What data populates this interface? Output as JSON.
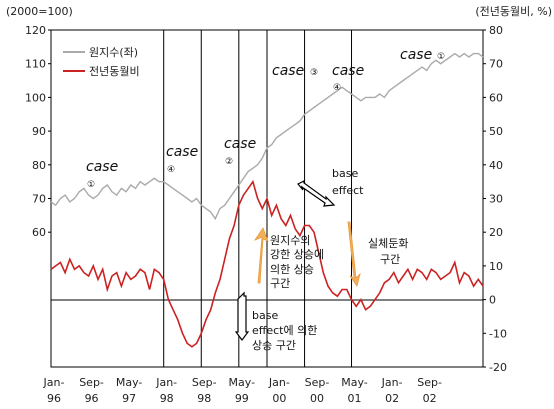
{
  "chart_data": {
    "type": "line",
    "left_axis": {
      "unit_label": "(2000=100)",
      "ticks": [
        60,
        70,
        80,
        90,
        100,
        110,
        120
      ],
      "range": [
        20,
        120
      ]
    },
    "right_axis": {
      "unit_label": "(전년동월비, %)",
      "ticks": [
        -20,
        -10,
        0,
        10,
        20,
        30,
        40,
        50,
        60,
        70,
        80
      ],
      "range": [
        -20,
        80
      ]
    },
    "x_ticks": [
      {
        "top": "Jan-",
        "bottom": "96"
      },
      {
        "top": "Sep-",
        "bottom": "96"
      },
      {
        "top": "May-",
        "bottom": "97"
      },
      {
        "top": "Jan-",
        "bottom": "98"
      },
      {
        "top": "Sep-",
        "bottom": "98"
      },
      {
        "top": "May-",
        "bottom": "99"
      },
      {
        "top": "Jan-",
        "bottom": "00"
      },
      {
        "top": "Sep-",
        "bottom": "00"
      },
      {
        "top": "May-",
        "bottom": "01"
      },
      {
        "top": "Jan-",
        "bottom": "02"
      },
      {
        "top": "Sep-",
        "bottom": "02"
      }
    ],
    "legend": [
      {
        "name": "원지수(좌)",
        "color": "#aaaaaa"
      },
      {
        "name": "전년동월비",
        "color": "#cc2222"
      }
    ],
    "case_markers": [
      {
        "label": "case",
        "num": "①"
      },
      {
        "label": "case",
        "num": "④"
      },
      {
        "label": "case",
        "num": "②"
      },
      {
        "label": "case",
        "num": "③"
      },
      {
        "label": "case",
        "num": "④"
      },
      {
        "label": "case",
        "num": "①"
      }
    ],
    "vertical_lines_month": [
      24,
      32,
      40,
      46,
      54,
      64
    ],
    "annotations": {
      "base_effect_top": [
        "base",
        "effect"
      ],
      "rise_label": [
        "원지수의",
        "강한 상승에",
        "의한 상승",
        "구간"
      ],
      "decline_label": [
        "실체둔화",
        "구간"
      ],
      "base_effect_bottom": [
        "base",
        "effect에 의한",
        "상승 구간"
      ]
    },
    "series": [
      {
        "name": "원지수(좌)",
        "axis": "left",
        "color": "#aaaaaa",
        "values": [
          69,
          68,
          70,
          71,
          69,
          70,
          72,
          73,
          71,
          70,
          71,
          73,
          74,
          72,
          71,
          73,
          72,
          74,
          73,
          75,
          74,
          75,
          76,
          75,
          75,
          74,
          73,
          72,
          71,
          70,
          69,
          70,
          68,
          67,
          66,
          64,
          67,
          68,
          70,
          72,
          74,
          76,
          78,
          79,
          80,
          82,
          85,
          86,
          88,
          89,
          90,
          91,
          92,
          93,
          95,
          96,
          97,
          98,
          99,
          100,
          101,
          102,
          103,
          102,
          101,
          100,
          99,
          100,
          100,
          100,
          101,
          100,
          102,
          103,
          104,
          105,
          106,
          107,
          108,
          109,
          108,
          110,
          111,
          110,
          111,
          112,
          113,
          112,
          113,
          112,
          113,
          113,
          112
        ]
      },
      {
        "name": "전년동월비",
        "axis": "right",
        "color": "#cc2222",
        "values": [
          9,
          10,
          11,
          8,
          12,
          9,
          10,
          8,
          7,
          10,
          6,
          9,
          3,
          7,
          8,
          4,
          8,
          6,
          7,
          9,
          8,
          3,
          9,
          8,
          6,
          0,
          -3,
          -6,
          -10,
          -13,
          -14,
          -13,
          -10,
          -6,
          -3,
          2,
          6,
          12,
          18,
          22,
          28,
          31,
          33,
          35,
          30,
          27,
          30,
          25,
          28,
          24,
          22,
          25,
          21,
          19,
          22,
          22,
          20,
          14,
          8,
          4,
          2,
          1,
          3,
          3,
          0,
          -2,
          0,
          -3,
          -2,
          0,
          2,
          5,
          6,
          8,
          5,
          7,
          9,
          6,
          9,
          8,
          6,
          9,
          8,
          6,
          7,
          8,
          11,
          5,
          8,
          7,
          4,
          6,
          4
        ]
      }
    ]
  }
}
